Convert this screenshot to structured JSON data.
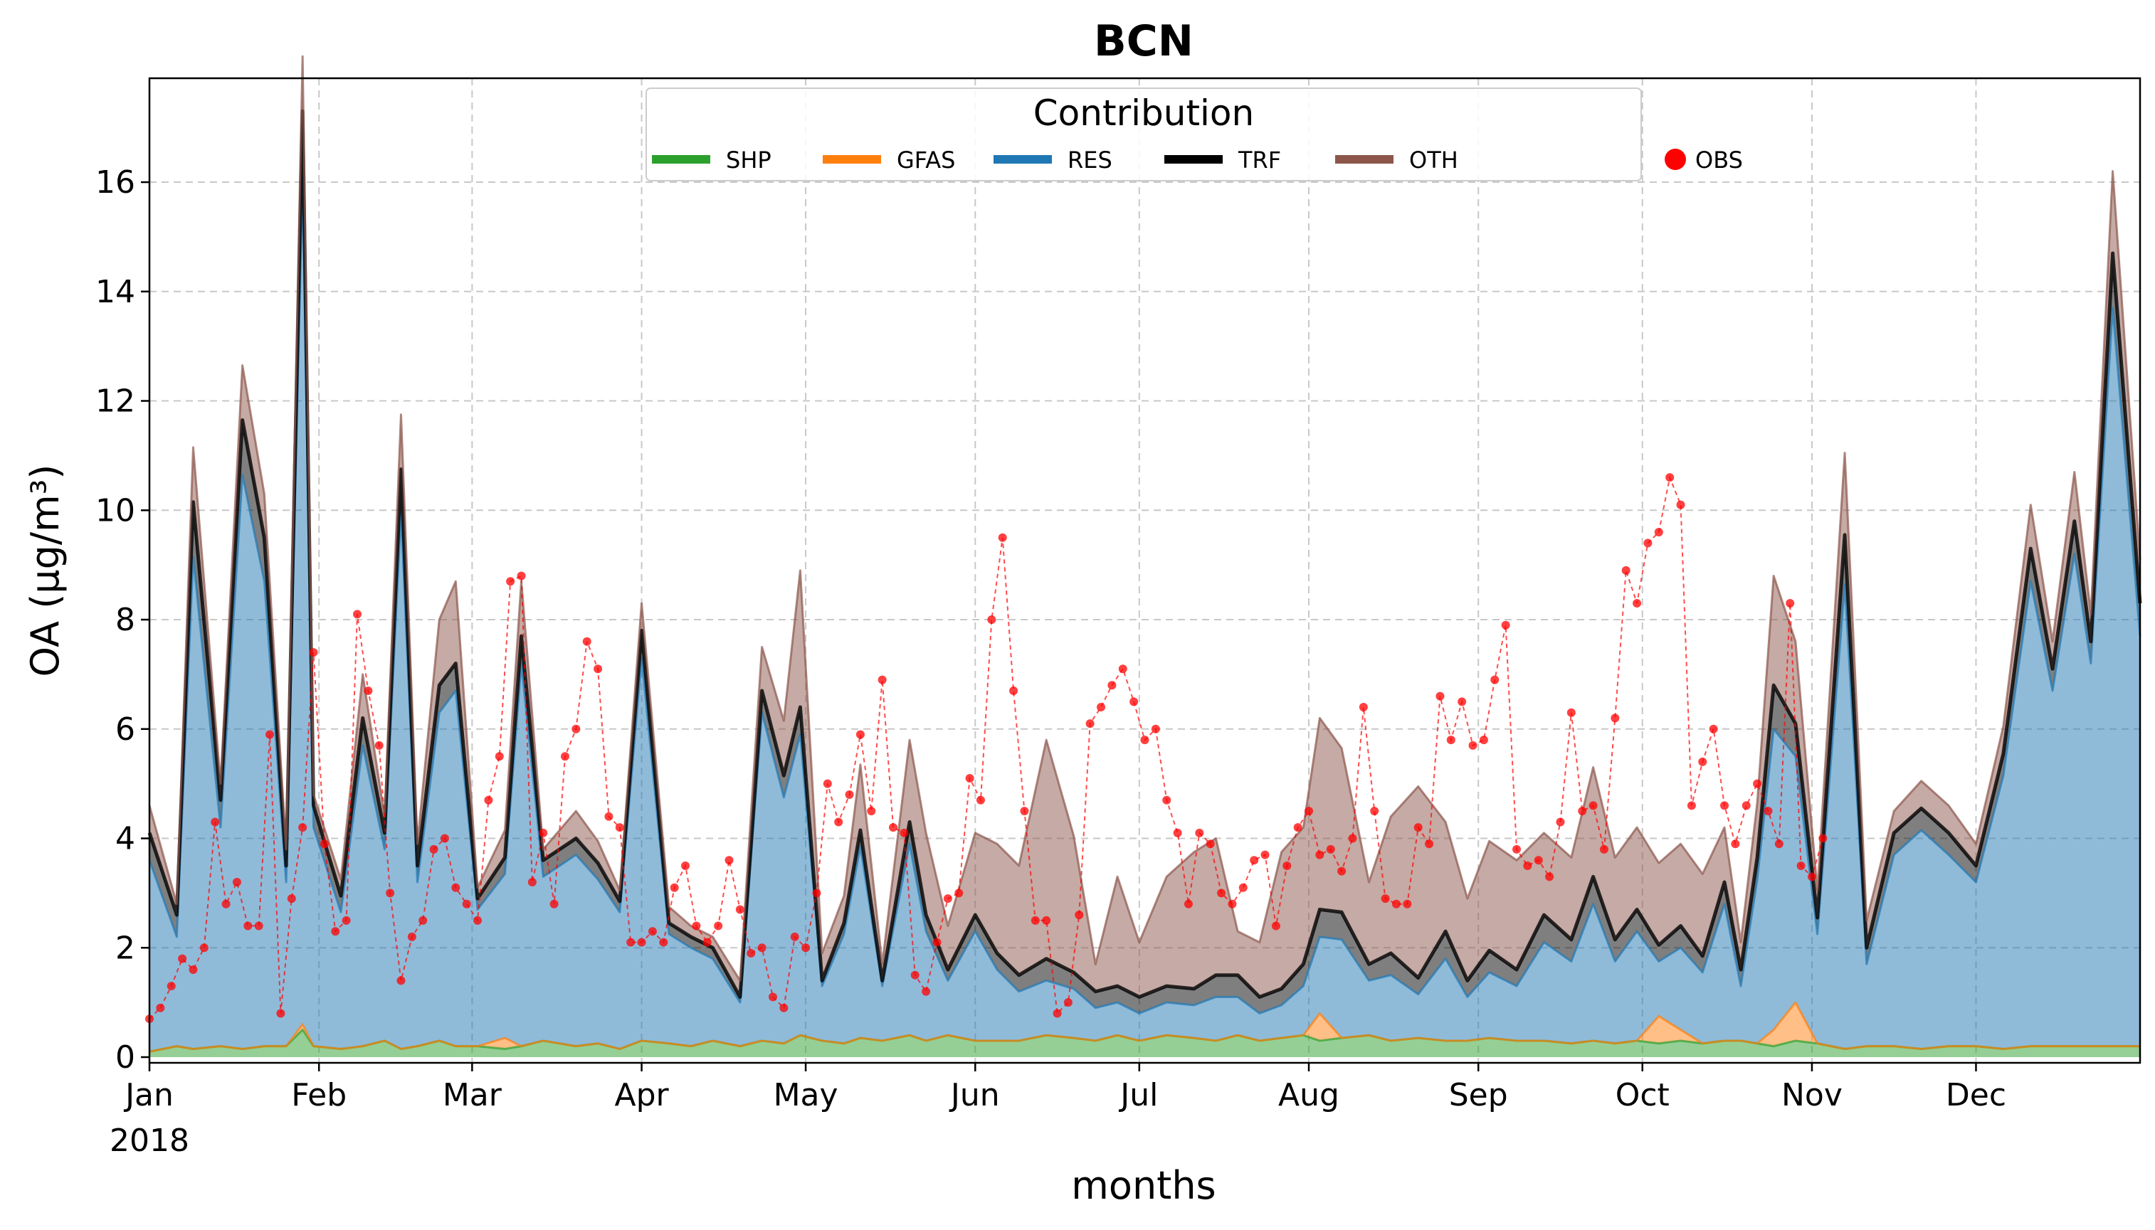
{
  "chart_data": {
    "type": "area",
    "title": "BCN",
    "xlabel": "months",
    "ylabel": "OA (μg/m³)",
    "ylim": [
      0,
      17.9
    ],
    "yticks": [
      "0",
      "2",
      "4",
      "6",
      "8",
      "10",
      "12",
      "14",
      "16"
    ],
    "xticks": [
      "Jan",
      "Feb",
      "Mar",
      "Apr",
      "May",
      "Jun",
      "Jul",
      "Aug",
      "Sep",
      "Oct",
      "Nov",
      "Dec"
    ],
    "year_label": "2018",
    "grid": true,
    "legend": {
      "title": "Contribution",
      "placement": "top-center",
      "entries": [
        "SHP",
        "GFAS",
        "RES",
        "TRF",
        "OTH",
        "OBS"
      ]
    },
    "colors": {
      "SHP": "#2ca02c",
      "GFAS": "#ff7f0e",
      "RES": "#1f77b4",
      "TRF": "#000000",
      "OTH": "#8c564b",
      "OBS": "#ff0000"
    },
    "x_day": [
      1,
      6,
      9,
      14,
      18,
      22,
      26,
      29,
      31,
      36,
      40,
      44,
      47,
      50,
      54,
      57,
      61,
      66,
      69,
      73,
      79,
      83,
      87,
      91,
      96,
      100,
      104,
      109,
      113,
      117,
      120,
      124,
      128,
      131,
      135,
      140,
      143,
      147,
      152,
      156,
      160,
      165,
      170,
      174,
      178,
      182,
      187,
      192,
      196,
      200,
      204,
      208,
      212,
      215,
      219,
      224,
      228,
      233,
      238,
      242,
      246,
      251,
      256,
      261,
      265,
      269,
      273,
      277,
      281,
      285,
      289,
      292,
      295,
      298,
      302,
      306,
      311,
      315,
      320,
      325,
      330,
      335,
      340,
      345,
      349,
      353,
      356,
      360,
      365
    ],
    "series": [
      {
        "name": "SHP",
        "values": [
          0.1,
          0.2,
          0.15,
          0.2,
          0.15,
          0.2,
          0.2,
          0.5,
          0.2,
          0.15,
          0.2,
          0.3,
          0.15,
          0.2,
          0.3,
          0.2,
          0.2,
          0.15,
          0.2,
          0.3,
          0.2,
          0.25,
          0.15,
          0.3,
          0.25,
          0.2,
          0.3,
          0.2,
          0.3,
          0.25,
          0.4,
          0.3,
          0.25,
          0.35,
          0.3,
          0.4,
          0.3,
          0.4,
          0.3,
          0.3,
          0.3,
          0.4,
          0.35,
          0.3,
          0.4,
          0.3,
          0.4,
          0.35,
          0.3,
          0.4,
          0.3,
          0.35,
          0.4,
          0.3,
          0.35,
          0.4,
          0.3,
          0.35,
          0.3,
          0.3,
          0.35,
          0.3,
          0.3,
          0.25,
          0.3,
          0.25,
          0.3,
          0.25,
          0.3,
          0.25,
          0.3,
          0.3,
          0.25,
          0.2,
          0.3,
          0.25,
          0.15,
          0.2,
          0.2,
          0.15,
          0.2,
          0.2,
          0.15,
          0.2,
          0.2,
          0.2,
          0.2,
          0.2,
          0.2
        ]
      },
      {
        "name": "GFAS",
        "values": [
          0,
          0,
          0,
          0,
          0,
          0,
          0,
          0.1,
          0,
          0,
          0,
          0,
          0,
          0,
          0,
          0,
          0,
          0.2,
          0,
          0,
          0,
          0,
          0,
          0,
          0,
          0,
          0,
          0,
          0,
          0,
          0,
          0,
          0,
          0,
          0,
          0,
          0,
          0,
          0,
          0,
          0,
          0,
          0,
          0,
          0,
          0,
          0,
          0,
          0,
          0,
          0,
          0,
          0,
          0.5,
          0,
          0,
          0,
          0,
          0,
          0,
          0,
          0,
          0,
          0,
          0,
          0,
          0,
          0.5,
          0.2,
          0,
          0,
          0,
          0,
          0.3,
          0.7,
          0,
          0,
          0,
          0,
          0,
          0,
          0,
          0,
          0,
          0,
          0,
          0,
          0,
          0
        ]
      },
      {
        "name": "RES",
        "values": [
          3.5,
          2.0,
          9.0,
          4.0,
          10.5,
          8.5,
          3.0,
          15.5,
          4.0,
          2.5,
          5.5,
          3.5,
          9.8,
          3.0,
          6.0,
          6.5,
          2.5,
          3.0,
          7.0,
          3.0,
          3.5,
          3.0,
          2.5,
          7.0,
          2.0,
          1.8,
          1.5,
          0.8,
          6.0,
          4.5,
          5.5,
          1.0,
          2.0,
          3.5,
          1.0,
          3.5,
          2.0,
          1.0,
          2.0,
          1.3,
          0.9,
          1.0,
          0.9,
          0.6,
          0.6,
          0.5,
          0.6,
          0.6,
          0.8,
          0.7,
          0.5,
          0.6,
          0.9,
          1.4,
          1.8,
          1.0,
          1.2,
          0.8,
          1.5,
          0.8,
          1.2,
          1.0,
          1.8,
          1.5,
          2.5,
          1.5,
          2.0,
          1.0,
          1.5,
          1.3,
          2.5,
          1.0,
          3.0,
          5.5,
          4.5,
          2.0,
          8.5,
          1.5,
          3.5,
          4.0,
          3.5,
          3.0,
          5.0,
          8.5,
          6.5,
          9.0,
          7.0,
          13.5,
          7.5
        ]
      },
      {
        "name": "TRF",
        "values": [
          0.5,
          0.4,
          1.0,
          0.5,
          1.0,
          0.8,
          0.3,
          1.2,
          0.4,
          0.3,
          0.5,
          0.3,
          0.8,
          0.3,
          0.5,
          0.5,
          0.2,
          0.3,
          0.5,
          0.3,
          0.3,
          0.3,
          0.2,
          0.5,
          0.2,
          0.2,
          0.2,
          0.1,
          0.4,
          0.4,
          0.5,
          0.1,
          0.2,
          0.3,
          0.1,
          0.4,
          0.3,
          0.2,
          0.3,
          0.3,
          0.3,
          0.4,
          0.3,
          0.3,
          0.3,
          0.3,
          0.3,
          0.3,
          0.4,
          0.4,
          0.3,
          0.3,
          0.4,
          0.5,
          0.5,
          0.3,
          0.4,
          0.3,
          0.5,
          0.3,
          0.4,
          0.3,
          0.5,
          0.4,
          0.5,
          0.4,
          0.4,
          0.3,
          0.4,
          0.3,
          0.4,
          0.3,
          0.4,
          0.8,
          0.6,
          0.3,
          0.9,
          0.3,
          0.4,
          0.4,
          0.4,
          0.3,
          0.4,
          0.6,
          0.4,
          0.6,
          0.4,
          1.0,
          0.6
        ]
      },
      {
        "name": "OTH",
        "values": [
          0.5,
          0.2,
          1.0,
          0.3,
          1.0,
          0.8,
          0.3,
          1.0,
          0.2,
          0.3,
          0.8,
          0.3,
          1.0,
          0.4,
          1.2,
          1.5,
          0.2,
          0.5,
          1.0,
          0.2,
          0.5,
          0.4,
          0.2,
          0.5,
          0.3,
          0.2,
          0.2,
          0.3,
          0.8,
          1.0,
          2.5,
          0.5,
          0.5,
          1.2,
          0.3,
          1.5,
          1.5,
          0.8,
          1.5,
          2.0,
          2.0,
          4.0,
          2.5,
          0.5,
          2.0,
          1.0,
          2.0,
          2.5,
          2.5,
          0.8,
          1.0,
          2.5,
          2.5,
          3.5,
          3.0,
          1.5,
          2.5,
          3.5,
          2.0,
          1.5,
          2.0,
          2.0,
          1.5,
          1.5,
          2.0,
          1.5,
          1.5,
          1.5,
          1.5,
          1.5,
          1.0,
          0.5,
          1.0,
          2.0,
          1.5,
          0.5,
          1.5,
          0.5,
          0.4,
          0.5,
          0.5,
          0.4,
          0.5,
          0.8,
          0.5,
          0.9,
          0.5,
          1.5,
          0.8
        ]
      }
    ],
    "obs": {
      "name": "OBS",
      "x_day": [
        1,
        3,
        5,
        7,
        9,
        11,
        13,
        15,
        17,
        19,
        21,
        23,
        25,
        27,
        29,
        31,
        33,
        35,
        37,
        39,
        41,
        43,
        45,
        47,
        49,
        51,
        53,
        55,
        57,
        59,
        61,
        63,
        65,
        67,
        69,
        71,
        73,
        75,
        77,
        79,
        81,
        83,
        85,
        87,
        89,
        91,
        93,
        95,
        97,
        99,
        101,
        103,
        105,
        107,
        109,
        111,
        113,
        115,
        117,
        119,
        121,
        123,
        125,
        127,
        129,
        131,
        133,
        135,
        137,
        139,
        141,
        143,
        145,
        147,
        149,
        151,
        153,
        155,
        157,
        159,
        161,
        163,
        165,
        167,
        169,
        171,
        173,
        175,
        177,
        179,
        181,
        183,
        185,
        187,
        189,
        191,
        193,
        195,
        197,
        199,
        201,
        203,
        205,
        207,
        209,
        211,
        213,
        215,
        217,
        219,
        221,
        223,
        225,
        227,
        229,
        231,
        233,
        235,
        237,
        239,
        241,
        243,
        245,
        247,
        249,
        251,
        253,
        255,
        257,
        259,
        261,
        263,
        265,
        267,
        269,
        271,
        273,
        275,
        277,
        279,
        281,
        283,
        285,
        287,
        289,
        291,
        293,
        295,
        297,
        299,
        301,
        303,
        305,
        307
      ],
      "values": [
        0.7,
        0.9,
        1.3,
        1.8,
        1.6,
        2.0,
        4.3,
        2.8,
        3.2,
        2.4,
        2.4,
        5.9,
        0.8,
        2.9,
        4.2,
        7.4,
        3.9,
        2.3,
        2.5,
        8.1,
        6.7,
        5.7,
        3.0,
        1.4,
        2.2,
        2.5,
        3.8,
        4.0,
        3.1,
        2.8,
        2.5,
        4.7,
        5.5,
        8.7,
        8.8,
        3.2,
        4.1,
        2.8,
        5.5,
        6.0,
        7.6,
        7.1,
        4.4,
        4.2,
        2.1,
        2.1,
        2.3,
        2.1,
        3.1,
        3.5,
        2.4,
        2.1,
        2.4,
        3.6,
        2.7,
        1.9,
        2.0,
        1.1,
        0.9,
        2.2,
        2.0,
        3.0,
        5.0,
        4.3,
        4.8,
        5.9,
        4.5,
        6.9,
        4.2,
        4.1,
        1.5,
        1.2,
        2.1,
        2.9,
        3.0,
        5.1,
        4.7,
        8.0,
        9.5,
        6.7,
        4.5,
        2.5,
        2.5,
        0.8,
        1.0,
        2.6,
        6.1,
        6.4,
        6.8,
        7.1,
        6.5,
        5.8,
        6.0,
        4.7,
        4.1,
        2.8,
        4.1,
        3.9,
        3.0,
        2.8,
        3.1,
        3.6,
        3.7,
        2.4,
        3.5,
        4.2,
        4.5,
        3.7,
        3.8,
        3.4,
        4.0,
        6.4,
        4.5,
        2.9,
        2.8,
        2.8,
        4.2,
        3.9,
        6.6,
        5.8,
        6.5,
        5.7,
        5.8,
        6.9,
        7.9,
        3.8,
        3.5,
        3.6,
        3.3,
        4.3,
        6.3,
        4.5,
        4.6,
        3.8,
        6.2,
        8.9,
        8.3,
        9.4,
        9.6,
        10.6,
        10.1,
        4.6,
        5.4,
        6.0,
        4.6,
        3.9,
        4.6,
        5.0,
        4.5,
        3.9,
        8.3,
        3.5,
        3.3,
        4.0
      ]
    }
  }
}
